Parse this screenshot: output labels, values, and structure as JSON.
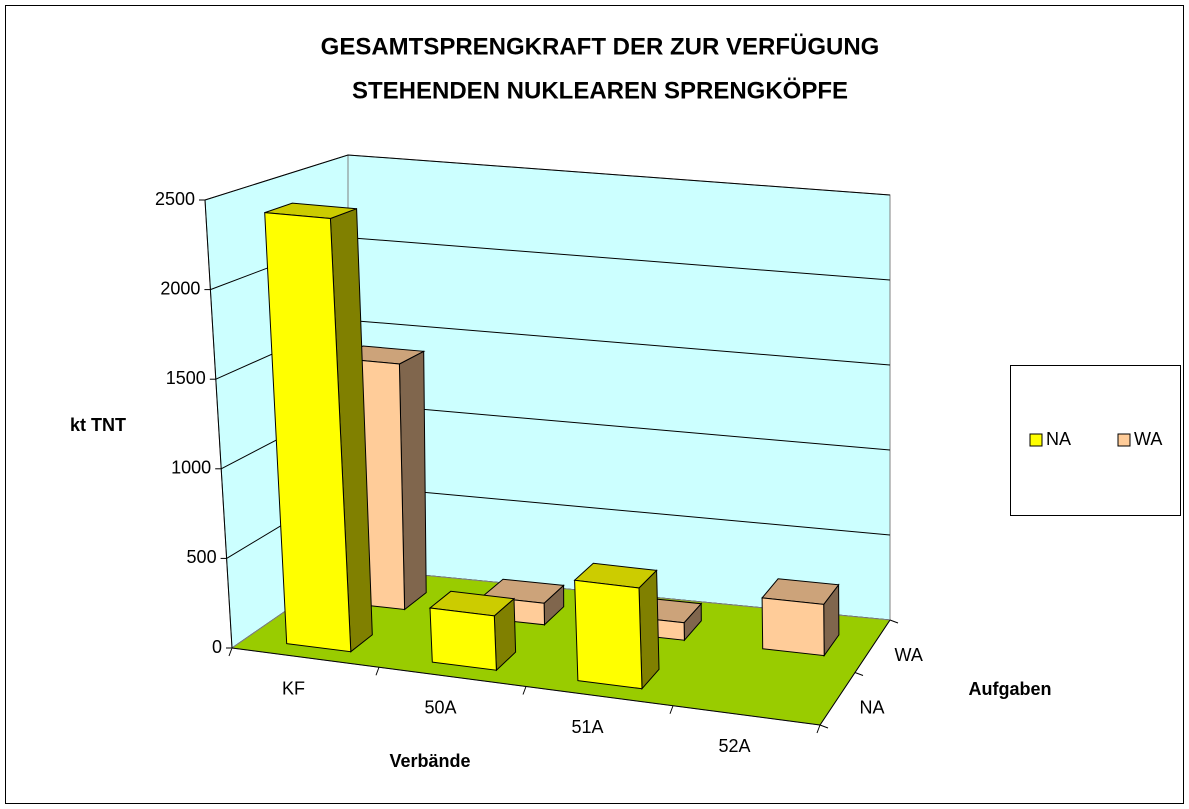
{
  "chart_data": {
    "type": "bar3d",
    "title": [
      "GESAMTSPRENGKRAFT DER ZUR VERFÜGUNG",
      "STEHENDEN NUKLEAREN SPRENGKÖPFE"
    ],
    "y_label": "kt TNT",
    "x_label": "Verbände",
    "z_label": "Aufgaben",
    "categories": [
      "KF",
      "50A",
      "51A",
      "52A"
    ],
    "series": [
      {
        "name": "NA",
        "color": "#ffff00",
        "values": [
          2420,
          300,
          550,
          null
        ]
      },
      {
        "name": "WA",
        "color": "#ffcc99",
        "values": [
          1430,
          125,
          100,
          290
        ]
      }
    ],
    "ylim": [
      0,
      2500
    ],
    "yticks": [
      0,
      500,
      1000,
      1500,
      2000,
      2500
    ],
    "grid": true,
    "legend": "right"
  }
}
